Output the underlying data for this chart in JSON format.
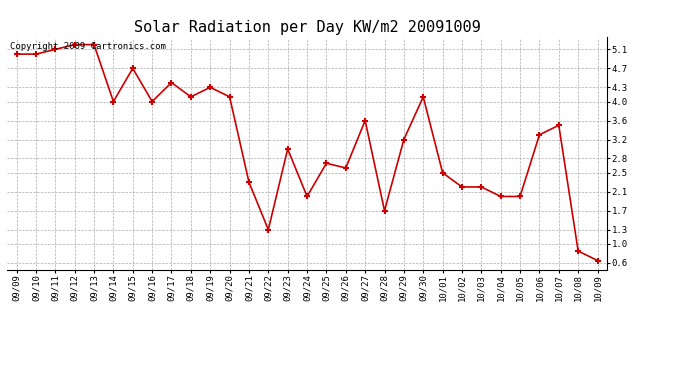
{
  "title": "Solar Radiation per Day KW/m2 20091009",
  "copyright": "Copyright 2009 Cartronics.com",
  "labels": [
    "09/09",
    "09/10",
    "09/11",
    "09/12",
    "09/13",
    "09/14",
    "09/15",
    "09/16",
    "09/17",
    "09/18",
    "09/19",
    "09/20",
    "09/21",
    "09/22",
    "09/23",
    "09/24",
    "09/25",
    "09/26",
    "09/27",
    "09/28",
    "09/29",
    "09/30",
    "10/01",
    "10/02",
    "10/03",
    "10/04",
    "10/05",
    "10/06",
    "10/07",
    "10/08",
    "10/09"
  ],
  "values": [
    5.0,
    5.0,
    5.1,
    5.2,
    5.2,
    4.0,
    4.7,
    4.0,
    4.4,
    4.1,
    4.3,
    4.1,
    2.3,
    1.3,
    3.0,
    2.0,
    2.7,
    2.6,
    3.6,
    1.7,
    3.2,
    4.1,
    2.5,
    2.2,
    2.2,
    2.0,
    2.0,
    3.3,
    3.5,
    0.85,
    0.65
  ],
  "line_color": "#cc0000",
  "marker": "+",
  "bg_color": "#ffffff",
  "grid_color": "#999999",
  "yticks": [
    0.6,
    1.0,
    1.3,
    1.7,
    2.1,
    2.5,
    2.8,
    3.2,
    3.6,
    4.0,
    4.3,
    4.7,
    5.1
  ],
  "ylim": [
    0.45,
    5.35
  ],
  "title_fontsize": 11,
  "tick_fontsize": 6.5,
  "copyright_fontsize": 6.5
}
